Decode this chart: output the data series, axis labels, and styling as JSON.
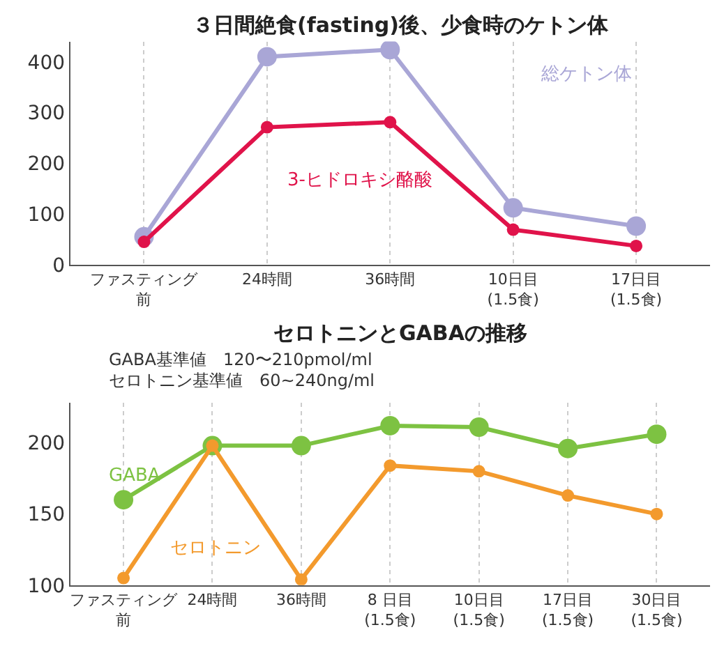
{
  "chart_data": [
    {
      "type": "line",
      "title": "３日間絶食(fasting)後、少食時のケトン体",
      "categories": [
        "ファスティング前",
        "24時間",
        "36時間",
        "10日目\n(1.5食)",
        "17日目\n(1.5食)"
      ],
      "series": [
        {
          "name": "総ケトン体",
          "color": "#a9a6d6",
          "values": [
            55,
            410,
            424,
            112,
            76
          ]
        },
        {
          "name": "3-ヒドロキシ酪酸",
          "color": "#e0134a",
          "values": [
            45,
            271,
            281,
            69,
            37
          ]
        }
      ],
      "ylim": [
        0,
        440
      ],
      "yticks": [
        0,
        100,
        200,
        300,
        400
      ],
      "grid": "x",
      "marker": "circle",
      "line_style": "solid"
    },
    {
      "type": "line",
      "title": "セロトニンとGABAの推移",
      "categories": [
        "ファスティング前",
        "24時間",
        "36時間",
        "8 日目\n(1.5食)",
        "10日目\n(1.5食)",
        "17日目\n(1.5食)",
        "30日目\n(1.5食)"
      ],
      "series": [
        {
          "name": "GABA",
          "color": "#7dc242",
          "values": [
            160,
            198,
            198,
            212,
            211,
            196,
            206
          ]
        },
        {
          "name": "セロトニン",
          "color": "#f39a2d",
          "values": [
            105,
            198,
            104,
            184,
            180,
            163,
            150
          ]
        }
      ],
      "annotations": [
        "GABA基準値　120〜210pmol/ml",
        "セロトニン基準値　60~240ng/ml"
      ],
      "ylim": [
        100,
        228
      ],
      "yticks": [
        100,
        150,
        200
      ],
      "grid": "x",
      "marker": "circle",
      "line_style": "solid"
    }
  ]
}
